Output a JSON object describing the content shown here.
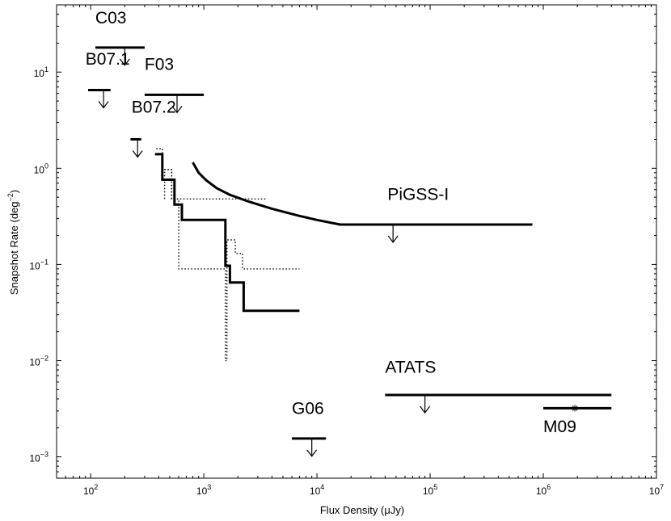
{
  "chart_data": {
    "type": "line",
    "xlabel": "Flux Density (μJy)",
    "ylabel": "Snapshot Rate (deg",
    "ylabel_sup": "−2",
    "ylabel_tail": ")",
    "x_scale": "log",
    "y_scale": "log",
    "xlim": [
      50,
      10000000
    ],
    "ylim": [
      0.0006,
      50
    ],
    "grid": false,
    "x_ticks": [
      {
        "base": "10",
        "exp": "2",
        "value": 100
      },
      {
        "base": "10",
        "exp": "3",
        "value": 1000
      },
      {
        "base": "10",
        "exp": "4",
        "value": 10000
      },
      {
        "base": "10",
        "exp": "5",
        "value": 100000
      },
      {
        "base": "10",
        "exp": "6",
        "value": 1000000
      },
      {
        "base": "10",
        "exp": "7",
        "value": 10000000
      }
    ],
    "y_ticks": [
      {
        "base": "10",
        "exp": "−3",
        "value": 0.001
      },
      {
        "base": "10",
        "exp": "−2",
        "value": 0.01
      },
      {
        "base": "10",
        "exp": "−1",
        "value": 0.1
      },
      {
        "base": "10",
        "exp": "0",
        "value": 1
      },
      {
        "base": "10",
        "exp": "1",
        "value": 10
      }
    ],
    "series": [
      {
        "style": "solid-thick",
        "points": [
          [
            370,
            1.4
          ],
          [
            430,
            1.4
          ],
          [
            430,
            0.76
          ],
          [
            550,
            0.76
          ],
          [
            550,
            0.42
          ],
          [
            640,
            0.42
          ],
          [
            640,
            0.29
          ],
          [
            1550,
            0.29
          ],
          [
            1550,
            0.097
          ],
          [
            1700,
            0.097
          ],
          [
            1700,
            0.065
          ],
          [
            2250,
            0.065
          ],
          [
            2250,
            0.033
          ],
          [
            7000,
            0.033
          ]
        ]
      },
      {
        "style": "dotted",
        "points": [
          [
            380,
            1.6
          ],
          [
            430,
            1.6
          ],
          [
            430,
            0.97
          ],
          [
            520,
            0.97
          ],
          [
            520,
            0.48
          ],
          [
            600,
            0.48
          ],
          [
            600,
            0.09
          ],
          [
            1550,
            0.09
          ],
          [
            1550,
            0.01
          ],
          [
            1600,
            0.01
          ],
          [
            1600,
            0.18
          ],
          [
            1900,
            0.18
          ],
          [
            1900,
            0.13
          ],
          [
            2200,
            0.13
          ],
          [
            2200,
            0.09
          ],
          [
            7000,
            0.09
          ]
        ]
      },
      {
        "style": "dotted",
        "points": [
          [
            450,
            0.48
          ],
          [
            450,
            0.97
          ],
          [
            520,
            0.97
          ],
          [
            520,
            0.48
          ],
          [
            3500,
            0.48
          ]
        ]
      },
      {
        "style": "solid-thick",
        "points": [
          [
            800,
            1.15
          ],
          [
            900,
            0.9
          ],
          [
            1050,
            0.75
          ],
          [
            1300,
            0.62
          ],
          [
            1700,
            0.53
          ],
          [
            2500,
            0.45
          ],
          [
            4000,
            0.38
          ],
          [
            7000,
            0.32
          ],
          [
            10000,
            0.29
          ],
          [
            16000,
            0.26
          ],
          [
            800000,
            0.26
          ]
        ]
      }
    ],
    "upper_limits": [
      {
        "label": "C03",
        "x": [
          110,
          300
        ],
        "y": 18,
        "arrow_x": 200,
        "label_x": 110,
        "label_y": 32
      },
      {
        "label": "B07.1",
        "x": [
          95,
          150
        ],
        "y": 6.5,
        "arrow_x": 130,
        "label_x": 90,
        "label_y": 12
      },
      {
        "label": "F03",
        "x": [
          300,
          1000
        ],
        "y": 5.8,
        "arrow_x": 580,
        "label_x": 300,
        "label_y": 10.5
      },
      {
        "label": "B07.2",
        "x": [
          225,
          280
        ],
        "y": 2.0,
        "arrow_x": 260,
        "label_x": 230,
        "label_y": 3.8
      },
      {
        "label": "PiGSS-I",
        "x": [
          16000,
          800000
        ],
        "y": 0.26,
        "arrow_x": 47000,
        "label_x": 42000,
        "label_y": 0.47,
        "draw_line": false
      },
      {
        "label": "ATATS",
        "x": [
          40000,
          4000000
        ],
        "y": 0.0044,
        "arrow_x": 90000,
        "label_x": 40000,
        "label_y": 0.0075
      },
      {
        "label": "G06",
        "x": [
          6000,
          12000
        ],
        "y": 0.00155,
        "arrow_x": 9000,
        "label_x": 6000,
        "label_y": 0.0028
      }
    ],
    "detections": [
      {
        "label": "M09",
        "x": [
          1000000,
          4000000
        ],
        "y": 0.0032,
        "marker_x": 1900000,
        "label_x": 1000000,
        "label_y": 0.0018
      }
    ]
  }
}
